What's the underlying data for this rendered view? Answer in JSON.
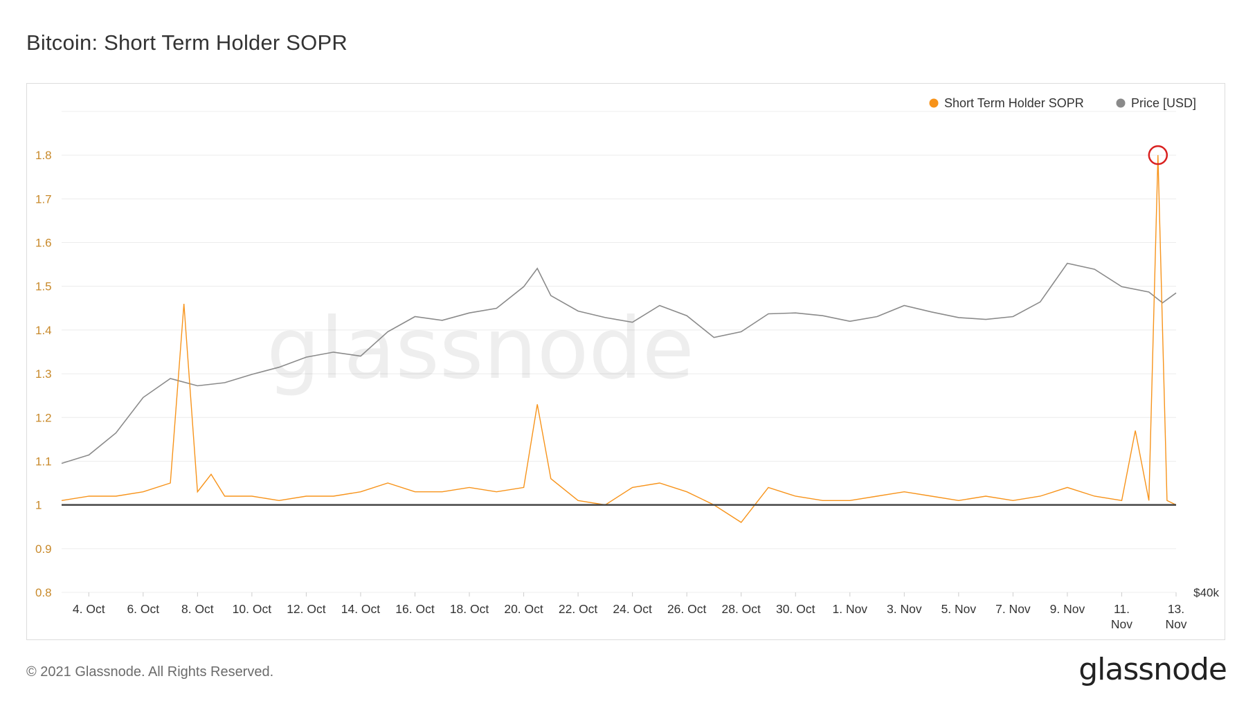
{
  "page": {
    "title": "Bitcoin: Short Term Holder SOPR",
    "copyright": "© 2021 Glassnode. All Rights Reserved.",
    "logo_text": "glassnode",
    "watermark_text": "glassnode"
  },
  "colors": {
    "sopr": "#f7931a",
    "price": "#8a8a8a",
    "baseline": "#444444",
    "highlight_circle": "#d9201f",
    "axis_left_labels": "#c8892a",
    "grid": "#ececec"
  },
  "chart_data": {
    "type": "line",
    "title": "Bitcoin: Short Term Holder SOPR",
    "x_tick_labels": [
      "4. Oct",
      "6. Oct",
      "8. Oct",
      "10. Oct",
      "12. Oct",
      "14. Oct",
      "16. Oct",
      "18. Oct",
      "20. Oct",
      "22. Oct",
      "24. Oct",
      "26. Oct",
      "28. Oct",
      "30. Oct",
      "1. Nov",
      "3. Nov",
      "5. Nov",
      "7. Nov",
      "9. Nov",
      "11. Nov",
      "13. Nov"
    ],
    "x_range": [
      "2021-10-03",
      "2021-11-13"
    ],
    "y_left": {
      "label": "",
      "ticks": [
        "0.8",
        "0.9",
        "1",
        "1.1",
        "1.2",
        "1.3",
        "1.4",
        "1.5",
        "1.6",
        "1.7",
        "1.8"
      ],
      "range": [
        0.8,
        1.9
      ],
      "baseline": 1
    },
    "y_right": {
      "label": "",
      "ticks": [
        "$40k"
      ],
      "scale": "log"
    },
    "legend": {
      "placement": "top-right",
      "items": [
        "Short Term Holder SOPR",
        "Price [USD]"
      ]
    },
    "grid": true,
    "series": [
      {
        "name": "Short Term Holder SOPR",
        "axis": "left",
        "color": "#f7931a",
        "points": [
          [
            "2021-10-03",
            1.01
          ],
          [
            "2021-10-04",
            1.02
          ],
          [
            "2021-10-05",
            1.02
          ],
          [
            "2021-10-06",
            1.03
          ],
          [
            "2021-10-07",
            1.05
          ],
          [
            "2021-10-07T12",
            1.46
          ],
          [
            "2021-10-08",
            1.03
          ],
          [
            "2021-10-08T12",
            1.07
          ],
          [
            "2021-10-09",
            1.02
          ],
          [
            "2021-10-10",
            1.02
          ],
          [
            "2021-10-11",
            1.01
          ],
          [
            "2021-10-12",
            1.02
          ],
          [
            "2021-10-13",
            1.02
          ],
          [
            "2021-10-14",
            1.03
          ],
          [
            "2021-10-15",
            1.05
          ],
          [
            "2021-10-16",
            1.03
          ],
          [
            "2021-10-17",
            1.03
          ],
          [
            "2021-10-18",
            1.04
          ],
          [
            "2021-10-19",
            1.03
          ],
          [
            "2021-10-20",
            1.04
          ],
          [
            "2021-10-20T12",
            1.23
          ],
          [
            "2021-10-21",
            1.06
          ],
          [
            "2021-10-22",
            1.01
          ],
          [
            "2021-10-23",
            1.0
          ],
          [
            "2021-10-24",
            1.04
          ],
          [
            "2021-10-25",
            1.05
          ],
          [
            "2021-10-26",
            1.03
          ],
          [
            "2021-10-27",
            1.0
          ],
          [
            "2021-10-28",
            0.96
          ],
          [
            "2021-10-29",
            1.04
          ],
          [
            "2021-10-30",
            1.02
          ],
          [
            "2021-10-31",
            1.01
          ],
          [
            "2021-11-01",
            1.01
          ],
          [
            "2021-11-02",
            1.02
          ],
          [
            "2021-11-03",
            1.03
          ],
          [
            "2021-11-04",
            1.02
          ],
          [
            "2021-11-05",
            1.01
          ],
          [
            "2021-11-06",
            1.02
          ],
          [
            "2021-11-07",
            1.01
          ],
          [
            "2021-11-08",
            1.02
          ],
          [
            "2021-11-09",
            1.04
          ],
          [
            "2021-11-10",
            1.02
          ],
          [
            "2021-11-11",
            1.01
          ],
          [
            "2021-11-11T12",
            1.17
          ],
          [
            "2021-11-12",
            1.01
          ],
          [
            "2021-11-12T08",
            1.8
          ],
          [
            "2021-11-12T16",
            1.01
          ],
          [
            "2021-11-13",
            1.0
          ]
        ],
        "highlight": {
          "x": "2021-11-12T08",
          "y": 1.8
        }
      },
      {
        "name": "Price [USD]",
        "axis": "right",
        "color": "#8a8a8a",
        "points": [
          [
            "2021-10-03",
            47600
          ],
          [
            "2021-10-04",
            48300
          ],
          [
            "2021-10-05",
            50200
          ],
          [
            "2021-10-06",
            53400
          ],
          [
            "2021-10-07",
            55200
          ],
          [
            "2021-10-08",
            54500
          ],
          [
            "2021-10-09",
            54800
          ],
          [
            "2021-10-10",
            55600
          ],
          [
            "2021-10-11",
            56300
          ],
          [
            "2021-10-12",
            57300
          ],
          [
            "2021-10-13",
            57800
          ],
          [
            "2021-10-14",
            57400
          ],
          [
            "2021-10-15",
            59900
          ],
          [
            "2021-10-16",
            61500
          ],
          [
            "2021-10-17",
            61100
          ],
          [
            "2021-10-18",
            61900
          ],
          [
            "2021-10-19",
            62400
          ],
          [
            "2021-10-20",
            64800
          ],
          [
            "2021-10-20T12",
            66900
          ],
          [
            "2021-10-21",
            63800
          ],
          [
            "2021-10-22",
            62100
          ],
          [
            "2021-10-23",
            61400
          ],
          [
            "2021-10-24",
            60900
          ],
          [
            "2021-10-25",
            62700
          ],
          [
            "2021-10-26",
            61600
          ],
          [
            "2021-10-27",
            59300
          ],
          [
            "2021-10-28",
            59900
          ],
          [
            "2021-10-29",
            61800
          ],
          [
            "2021-10-30",
            61900
          ],
          [
            "2021-10-31",
            61600
          ],
          [
            "2021-11-01",
            61000
          ],
          [
            "2021-11-02",
            61500
          ],
          [
            "2021-11-03",
            62700
          ],
          [
            "2021-11-04",
            62000
          ],
          [
            "2021-11-05",
            61400
          ],
          [
            "2021-11-06",
            61200
          ],
          [
            "2021-11-07",
            61500
          ],
          [
            "2021-11-08",
            63100
          ],
          [
            "2021-11-09",
            67500
          ],
          [
            "2021-11-10",
            66800
          ],
          [
            "2021-11-11",
            64800
          ],
          [
            "2021-11-12",
            64200
          ],
          [
            "2021-11-12T12",
            63000
          ],
          [
            "2021-11-13",
            64100
          ]
        ]
      }
    ]
  }
}
